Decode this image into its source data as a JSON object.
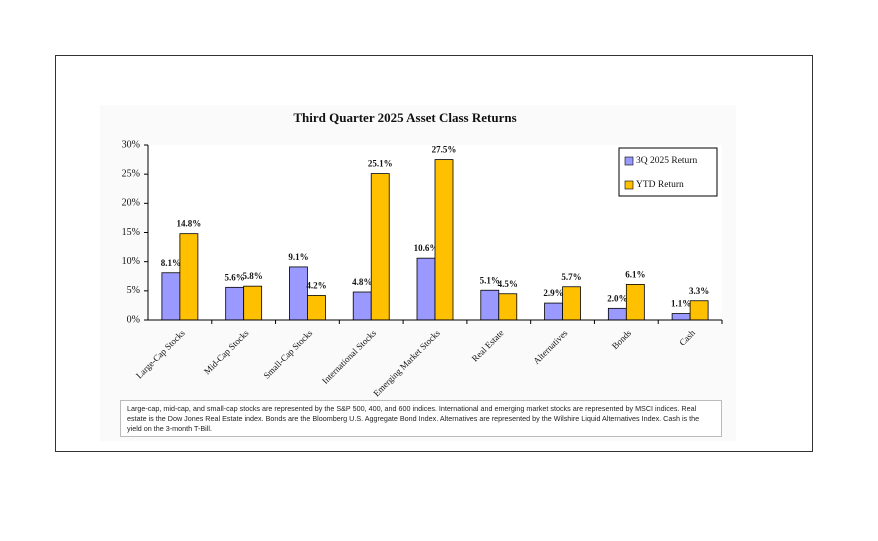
{
  "chart_data": {
    "type": "bar",
    "title": "Third Quarter 2025 Asset Class Returns",
    "categories": [
      "Large-Cap Stocks",
      "Mid-Cap Stocks",
      "Small-Cap Stocks",
      "International Stocks",
      "Emerging Market Stocks",
      "Real Estate",
      "Alternatives",
      "Bonds",
      "Cash"
    ],
    "series": [
      {
        "name": "3Q 2025 Return",
        "color": "#9999ff",
        "values": [
          8.1,
          5.6,
          9.1,
          4.8,
          10.6,
          5.1,
          2.9,
          2.0,
          1.1
        ],
        "value_labels": [
          "8.1%",
          "5.6%",
          "9.1%",
          "4.8%",
          "10.6%",
          "5.1%",
          "2.9%",
          "2.0%",
          "1.1%"
        ]
      },
      {
        "name": "YTD Return",
        "color": "#ffc000",
        "values": [
          14.8,
          5.8,
          4.2,
          25.1,
          27.5,
          4.5,
          5.7,
          6.1,
          3.3
        ],
        "value_labels": [
          "14.8%",
          "5.8%",
          "4.2%",
          "25.1%",
          "27.5%",
          "4.5%",
          "5.7%",
          "6.1%",
          "3.3%"
        ]
      }
    ],
    "ylim": [
      0,
      30
    ],
    "yticks": [
      {
        "value": 0,
        "label": "0%"
      },
      {
        "value": 5,
        "label": "5%"
      },
      {
        "value": 10,
        "label": "10%"
      },
      {
        "value": 15,
        "label": "15%"
      },
      {
        "value": 20,
        "label": "20%"
      },
      {
        "value": 25,
        "label": "25%"
      },
      {
        "value": 30,
        "label": "30%"
      }
    ],
    "grid": false,
    "legend": "top-right",
    "note": "Large-cap, mid-cap, and small-cap stocks are represented by the S&P 500, 400, and 600 indices.  International and emerging market stocks are represented by MSCI indices.  Real estate is the Dow Jones Real Estate index.  Bonds are the Bloomberg U.S. Aggregate Bond Index.  Alternatives are represented by the Wilshire Liquid Alternatives Index.  Cash is the yield on the 3-month T-Bill."
  }
}
